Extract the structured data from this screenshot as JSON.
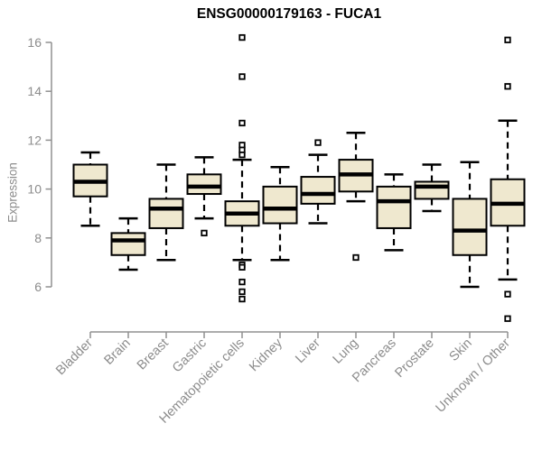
{
  "chart_data": {
    "type": "boxplot",
    "title": "ENSG00000179163 - FUCA1",
    "xlabel": "",
    "ylabel": "Expression",
    "ylim": [
      6,
      16
    ],
    "yticks": [
      6,
      8,
      10,
      12,
      14,
      16
    ],
    "grid": false,
    "legend": "none",
    "categories": [
      "Bladder",
      "Brain",
      "Breast",
      "Gastric",
      "Hematopoietic cells",
      "Kidney",
      "Liver",
      "Lung",
      "Pancreas",
      "Prostate",
      "Skin",
      "Unknown / Other"
    ],
    "series": [
      {
        "name": "Bladder",
        "whisker_low": 8.5,
        "q1": 9.7,
        "median": 10.3,
        "q3": 11.0,
        "whisker_high": 11.5,
        "outliers": []
      },
      {
        "name": "Brain",
        "whisker_low": 6.7,
        "q1": 7.3,
        "median": 7.9,
        "q3": 8.2,
        "whisker_high": 8.8,
        "outliers": []
      },
      {
        "name": "Breast",
        "whisker_low": 7.1,
        "q1": 8.4,
        "median": 9.2,
        "q3": 9.6,
        "whisker_high": 11.0,
        "outliers": []
      },
      {
        "name": "Gastric",
        "whisker_low": 8.8,
        "q1": 9.8,
        "median": 10.1,
        "q3": 10.6,
        "whisker_high": 11.3,
        "outliers": [
          8.2
        ]
      },
      {
        "name": "Hematopoietic cells",
        "whisker_low": 7.1,
        "q1": 8.5,
        "median": 9.0,
        "q3": 9.5,
        "whisker_high": 11.2,
        "outliers": [
          16.2,
          14.6,
          12.7,
          11.8,
          11.6,
          11.4,
          6.9,
          6.8,
          6.2,
          5.8,
          5.5
        ]
      },
      {
        "name": "Kidney",
        "whisker_low": 7.1,
        "q1": 8.6,
        "median": 9.2,
        "q3": 10.1,
        "whisker_high": 10.9,
        "outliers": []
      },
      {
        "name": "Liver",
        "whisker_low": 8.6,
        "q1": 9.4,
        "median": 9.8,
        "q3": 10.5,
        "whisker_high": 11.4,
        "outliers": [
          11.9
        ]
      },
      {
        "name": "Lung",
        "whisker_low": 9.5,
        "q1": 9.9,
        "median": 10.6,
        "q3": 11.2,
        "whisker_high": 12.3,
        "outliers": [
          7.2
        ]
      },
      {
        "name": "Pancreas",
        "whisker_low": 7.5,
        "q1": 8.4,
        "median": 9.5,
        "q3": 10.1,
        "whisker_high": 10.6,
        "outliers": []
      },
      {
        "name": "Prostate",
        "whisker_low": 9.1,
        "q1": 9.6,
        "median": 10.1,
        "q3": 10.3,
        "whisker_high": 11.0,
        "outliers": []
      },
      {
        "name": "Skin",
        "whisker_low": 6.0,
        "q1": 7.3,
        "median": 8.3,
        "q3": 9.6,
        "whisker_high": 11.1,
        "outliers": []
      },
      {
        "name": "Unknown / Other",
        "whisker_low": 6.3,
        "q1": 8.5,
        "median": 9.4,
        "q3": 10.4,
        "whisker_high": 12.8,
        "outliers": [
          16.1,
          14.2,
          5.7,
          4.7
        ]
      }
    ],
    "colors": {
      "box_fill": "#EFE8CF",
      "box_border": "#000000",
      "median": "#000000",
      "whisker": "#000000",
      "outlier_border": "#000000",
      "outlier_fill": "#ffffff",
      "axis_line": "#909090",
      "tick_label": "#8c8c8c",
      "title": "#000000",
      "background": "#ffffff"
    }
  }
}
